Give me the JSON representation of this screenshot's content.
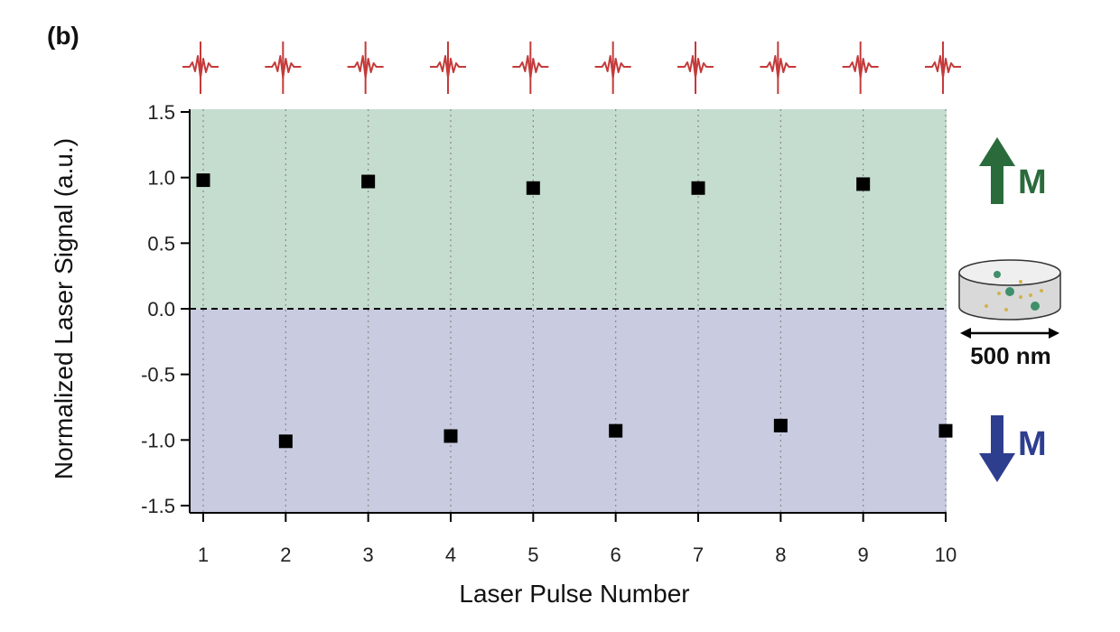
{
  "panel_label": "(b)",
  "colors": {
    "region_up": "#c5ddcf",
    "region_down": "#c9cbe0",
    "marker": "#000000",
    "pulse": "#c43a3a",
    "arrow_up": "#2a6b3c",
    "arrow_down": "#2e3e8f",
    "label_up": "#2a6b3c",
    "label_down": "#2e3e8f"
  },
  "annotations": {
    "up_label": "M",
    "down_label": "M",
    "scale_label": "500 nm",
    "pulse_icon": "laser-pulse-icon",
    "disk_icon": "nanodisk-icon"
  },
  "chart_data": {
    "type": "scatter",
    "xlabel": "Laser Pulse Number",
    "ylabel": "Normalized Laser Signal (a.u.)",
    "xlim": [
      1,
      10
    ],
    "ylim": [
      -1.5,
      1.5
    ],
    "x_ticks": [
      1,
      2,
      3,
      4,
      5,
      6,
      7,
      8,
      9,
      10
    ],
    "y_ticks": [
      1.5,
      1.0,
      0.5,
      0.0,
      -0.5,
      -1.0,
      -1.5
    ],
    "y_tick_labels": [
      "1.5",
      "1.0",
      "0.5",
      "0.0",
      "-0.5",
      "-1.0",
      "-1.5"
    ],
    "reference_line": 0.0,
    "grid": "vertical dotted",
    "series": [
      {
        "x": [
          1,
          2,
          3,
          4,
          5,
          6,
          7,
          8,
          9,
          10
        ],
        "y": [
          0.98,
          -1.01,
          0.97,
          -0.97,
          0.92,
          -0.93,
          0.92,
          -0.89,
          0.95,
          -0.93
        ]
      }
    ]
  }
}
